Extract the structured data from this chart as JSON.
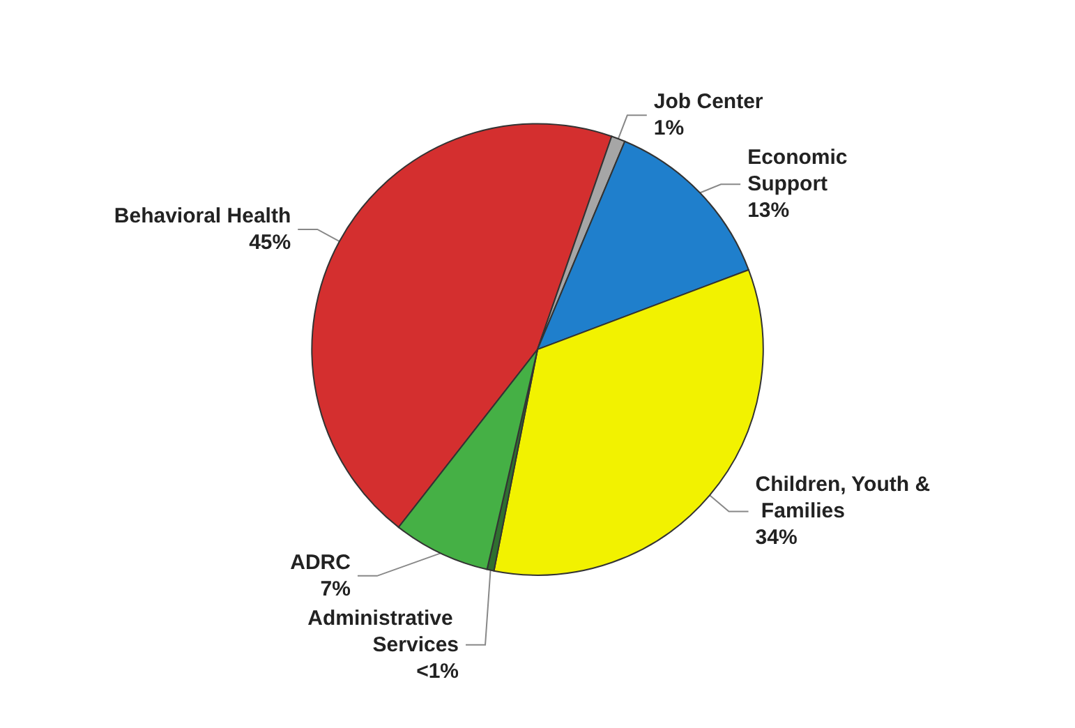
{
  "chart_data": {
    "type": "pie",
    "categories": [
      "Behavioral Health",
      "Job Center",
      "Economic Support",
      "Children, Youth & Families",
      "Administrative Services",
      "ADRC"
    ],
    "values": [
      45,
      1,
      13,
      34,
      0.5,
      7
    ],
    "value_labels": [
      "45%",
      "1%",
      "13%",
      "34%",
      "<1%",
      "7%"
    ],
    "colors": [
      "#d42f2f",
      "#a6a6a6",
      "#1f7fcc",
      "#f2f200",
      "#2f6f2f",
      "#45b045"
    ]
  }
}
